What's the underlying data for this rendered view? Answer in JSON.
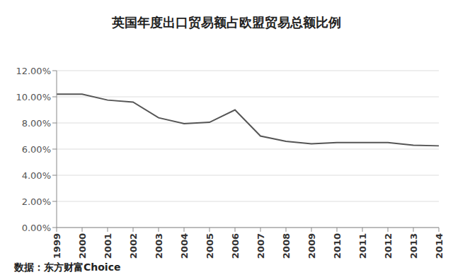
{
  "chart_data": {
    "type": "line",
    "title": "英国年度出口贸易额占欧盟贸易总额比例",
    "source": "数据：东方财富Choice",
    "categories": [
      "1999",
      "2000",
      "2001",
      "2002",
      "2003",
      "2004",
      "2005",
      "2006",
      "2007",
      "2008",
      "2009",
      "2010",
      "2011",
      "2012",
      "2013",
      "2014"
    ],
    "values": [
      10.2,
      10.2,
      9.75,
      9.6,
      8.4,
      7.95,
      8.05,
      9.0,
      7.0,
      6.6,
      6.4,
      6.5,
      6.5,
      6.5,
      6.3,
      6.25
    ],
    "color": "#555555",
    "ylim": [
      0,
      12
    ],
    "yticks": [
      {
        "value": 0,
        "label": "0.00%"
      },
      {
        "value": 2,
        "label": "2.00%"
      },
      {
        "value": 4,
        "label": "4.00%"
      },
      {
        "value": 6,
        "label": "6.00%"
      },
      {
        "value": 8,
        "label": "8.00%"
      },
      {
        "value": 10,
        "label": "10.00%"
      },
      {
        "value": 12,
        "label": "12.00%"
      }
    ],
    "grid": true
  }
}
